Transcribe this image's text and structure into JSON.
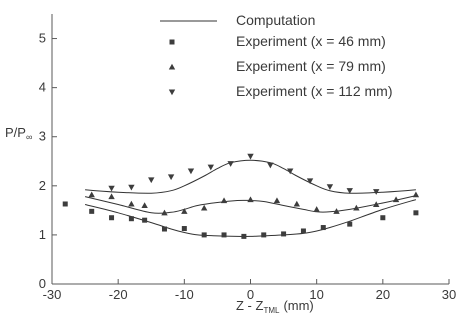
{
  "chart_data": {
    "type": "scatter",
    "xlabel": "Z - Z",
    "xlabel_sub": "TML",
    "xlabel_unit": "(mm)",
    "ylabel": "P/P",
    "ylabel_sub": "∞",
    "xlim": [
      -30,
      30
    ],
    "ylim": [
      0,
      5.5
    ],
    "xticks": [
      -30,
      -20,
      -10,
      0,
      10,
      20,
      30
    ],
    "yticks": [
      0,
      1,
      2,
      3,
      4,
      5
    ],
    "legend_position": "top-right",
    "computation": {
      "name": "Computation",
      "curves": [
        {
          "x": [
            -25,
            -20,
            -15,
            -12,
            -10,
            -8,
            -5,
            -2,
            0,
            2,
            5,
            8,
            10,
            12,
            15,
            20,
            25
          ],
          "y": [
            1.62,
            1.45,
            1.25,
            1.12,
            1.05,
            1.0,
            0.98,
            0.97,
            0.97,
            0.98,
            1.0,
            1.03,
            1.08,
            1.15,
            1.28,
            1.52,
            1.72
          ]
        },
        {
          "x": [
            -25,
            -20,
            -15,
            -12,
            -10,
            -8,
            -5,
            -2,
            0,
            2,
            5,
            8,
            10,
            12,
            15,
            20,
            25
          ],
          "y": [
            1.78,
            1.62,
            1.45,
            1.46,
            1.52,
            1.6,
            1.66,
            1.7,
            1.7,
            1.68,
            1.6,
            1.52,
            1.47,
            1.47,
            1.52,
            1.65,
            1.8
          ]
        },
        {
          "x": [
            -25,
            -20,
            -15,
            -12,
            -10,
            -7,
            -5,
            -3,
            0,
            3,
            5,
            7,
            10,
            12,
            15,
            20,
            25
          ],
          "y": [
            1.92,
            1.87,
            1.85,
            1.9,
            2.0,
            2.2,
            2.35,
            2.47,
            2.52,
            2.47,
            2.35,
            2.2,
            2.0,
            1.9,
            1.85,
            1.87,
            1.92
          ]
        }
      ]
    },
    "series": [
      {
        "name": "Experiment (x = 46 mm)",
        "marker": "square",
        "x": [
          -28,
          -24,
          -21,
          -18,
          -16,
          -13,
          -10,
          -7,
          -4,
          -1,
          2,
          5,
          8,
          11,
          15,
          20,
          25
        ],
        "y": [
          1.63,
          1.48,
          1.35,
          1.33,
          1.3,
          1.12,
          1.13,
          1.0,
          1.0,
          0.97,
          1.0,
          1.02,
          1.08,
          1.15,
          1.22,
          1.35,
          1.45
        ]
      },
      {
        "name": "Experiment (x = 79 mm)",
        "marker": "triangle-up",
        "x": [
          -24,
          -21,
          -18,
          -16,
          -13,
          -10,
          -7,
          -4,
          0,
          4,
          7,
          10,
          13,
          16,
          19,
          22,
          25
        ],
        "y": [
          1.82,
          1.78,
          1.63,
          1.6,
          1.45,
          1.48,
          1.55,
          1.7,
          1.72,
          1.7,
          1.63,
          1.52,
          1.48,
          1.55,
          1.62,
          1.72,
          1.82
        ]
      },
      {
        "name": "Experiment (x = 112 mm)",
        "marker": "triangle-down",
        "x": [
          -21,
          -18,
          -15,
          -12,
          -9,
          -6,
          -3,
          0,
          3,
          6,
          9,
          12,
          15,
          19
        ],
        "y": [
          1.95,
          1.97,
          2.12,
          2.18,
          2.3,
          2.38,
          2.45,
          2.6,
          2.42,
          2.3,
          2.1,
          1.98,
          1.9,
          1.88
        ]
      }
    ]
  }
}
